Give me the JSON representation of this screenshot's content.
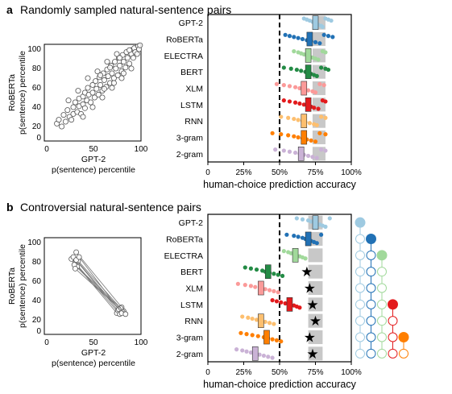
{
  "panels": [
    {
      "letter": "a",
      "title": "Randomly sampled natural-sentence pairs",
      "scatter": {
        "xlabel_lines": [
          "GPT-2",
          "p(sentence) percentile"
        ],
        "ylabel_lines": [
          "RoBERTa",
          "p(sentence) percentile"
        ],
        "ticks": [
          "0",
          "50",
          "100"
        ]
      },
      "accuracy": {
        "xlabel": "human-choice prediction accuracy",
        "tick_labels": [
          "0",
          "25%",
          "50%",
          "75%",
          "100%"
        ],
        "chance_line": 0.5,
        "models": [
          "GPT-2",
          "RoBERTa",
          "ELECTRA",
          "BERT",
          "XLM",
          "LSTM",
          "RNN",
          "3-gram",
          "2-gram"
        ]
      }
    },
    {
      "letter": "b",
      "title": "Controversial natural-sentence pairs",
      "scatter": {
        "xlabel_lines": [
          "GPT-2",
          "p(sentence) percentile"
        ],
        "ylabel_lines": [
          "RoBERTa",
          "p(sentence) percentile"
        ],
        "ticks": [
          "0",
          "50",
          "100"
        ]
      },
      "accuracy": {
        "xlabel": "human-choice prediction accuracy",
        "tick_labels": [
          "0",
          "25%",
          "50%",
          "75%",
          "100%"
        ],
        "chance_line": 0.5,
        "models": [
          "GPT-2",
          "RoBERTa",
          "ELECTRA",
          "BERT",
          "XLM",
          "LSTM",
          "RNN",
          "3-gram",
          "2-gram"
        ]
      }
    }
  ],
  "colors": {
    "GPT-2": "#9ecae1",
    "RoBERTa": "#2171b5",
    "ELECTRA": "#a1d99b",
    "BERT": "#238b45",
    "XLM": "#fb9a99",
    "LSTM": "#e31a1c",
    "RNN": "#fdbf6f",
    "3-gram": "#ff7f00",
    "2-gram": "#cab2d6",
    "noise_ceiling": "#c8c8c8",
    "chance": "#000000"
  },
  "chart_data": [
    {
      "panel": "a",
      "type": "scatter",
      "xlabel": "GPT-2 p(sentence) percentile",
      "ylabel": "RoBERTa p(sentence) percentile",
      "xlim": [
        0,
        100
      ],
      "ylim": [
        0,
        100
      ],
      "points": [
        [
          13,
          18
        ],
        [
          18,
          15
        ],
        [
          20,
          27
        ],
        [
          22,
          20
        ],
        [
          24,
          32
        ],
        [
          26,
          25
        ],
        [
          28,
          22
        ],
        [
          30,
          35
        ],
        [
          30,
          28
        ],
        [
          32,
          40
        ],
        [
          34,
          30
        ],
        [
          36,
          44
        ],
        [
          36,
          36
        ],
        [
          38,
          28
        ],
        [
          40,
          46
        ],
        [
          40,
          38
        ],
        [
          42,
          50
        ],
        [
          42,
          34
        ],
        [
          44,
          42
        ],
        [
          45,
          55
        ],
        [
          46,
          48
        ],
        [
          48,
          40
        ],
        [
          50,
          58
        ],
        [
          50,
          50
        ],
        [
          52,
          45
        ],
        [
          53,
          62
        ],
        [
          54,
          54
        ],
        [
          56,
          48
        ],
        [
          57,
          66
        ],
        [
          58,
          58
        ],
        [
          60,
          52
        ],
        [
          61,
          70
        ],
        [
          62,
          63
        ],
        [
          64,
          56
        ],
        [
          65,
          74
        ],
        [
          66,
          67
        ],
        [
          68,
          60
        ],
        [
          69,
          78
        ],
        [
          70,
          70
        ],
        [
          72,
          65
        ],
        [
          73,
          82
        ],
        [
          74,
          75
        ],
        [
          76,
          68
        ],
        [
          77,
          86
        ],
        [
          78,
          78
        ],
        [
          80,
          72
        ],
        [
          81,
          89
        ],
        [
          82,
          82
        ],
        [
          84,
          76
        ],
        [
          85,
          92
        ],
        [
          86,
          86
        ],
        [
          88,
          80
        ],
        [
          89,
          94
        ],
        [
          90,
          90
        ],
        [
          92,
          86
        ],
        [
          93,
          96
        ],
        [
          94,
          92
        ],
        [
          96,
          90
        ],
        [
          97,
          98
        ],
        [
          98,
          95
        ],
        [
          99,
          99
        ],
        [
          25,
          42
        ],
        [
          35,
          52
        ],
        [
          45,
          65
        ],
        [
          55,
          72
        ],
        [
          65,
          82
        ],
        [
          75,
          90
        ],
        [
          40,
          25
        ],
        [
          50,
          35
        ],
        [
          60,
          45
        ],
        [
          70,
          55
        ],
        [
          80,
          65
        ],
        [
          90,
          75
        ],
        [
          15,
          22
        ],
        [
          58,
          68
        ],
        [
          68,
          76
        ],
        [
          78,
          86
        ],
        [
          88,
          94
        ],
        [
          62,
          54
        ],
        [
          72,
          60
        ],
        [
          82,
          70
        ]
      ]
    },
    {
      "panel": "a",
      "type": "scatter",
      "xlabel": "human-choice prediction accuracy",
      "xlim": [
        0,
        1
      ],
      "chance": 0.5,
      "noise_ceiling": [
        0.73,
        0.82
      ],
      "series": [
        {
          "name": "GPT-2",
          "mean": 0.75,
          "points": [
            0.67,
            0.69,
            0.71,
            0.73,
            0.74,
            0.76,
            0.77,
            0.79,
            0.8,
            0.82,
            0.84,
            0.86
          ]
        },
        {
          "name": "RoBERTa",
          "mean": 0.71,
          "points": [
            0.54,
            0.57,
            0.6,
            0.63,
            0.66,
            0.69,
            0.72,
            0.75,
            0.78,
            0.81,
            0.84,
            0.87
          ]
        },
        {
          "name": "ELECTRA",
          "mean": 0.7,
          "points": [
            0.6,
            0.63,
            0.65,
            0.67,
            0.69,
            0.71,
            0.73,
            0.75,
            0.77,
            0.8,
            0.82
          ]
        },
        {
          "name": "BERT",
          "mean": 0.7,
          "points": [
            0.53,
            0.58,
            0.62,
            0.65,
            0.68,
            0.7,
            0.72,
            0.74,
            0.76,
            0.79,
            0.82,
            0.84
          ]
        },
        {
          "name": "XLM",
          "mean": 0.67,
          "points": [
            0.48,
            0.53,
            0.57,
            0.61,
            0.64,
            0.67,
            0.7,
            0.73,
            0.75,
            0.78,
            0.81
          ]
        },
        {
          "name": "LSTM",
          "mean": 0.7,
          "points": [
            0.53,
            0.57,
            0.61,
            0.64,
            0.67,
            0.7,
            0.72,
            0.74,
            0.77,
            0.8,
            0.82
          ]
        },
        {
          "name": "RNN",
          "mean": 0.67,
          "points": [
            0.51,
            0.56,
            0.6,
            0.63,
            0.66,
            0.68,
            0.71,
            0.74,
            0.76,
            0.79,
            0.82
          ]
        },
        {
          "name": "3-gram",
          "mean": 0.67,
          "points": [
            0.45,
            0.51,
            0.56,
            0.6,
            0.63,
            0.66,
            0.69,
            0.72,
            0.75,
            0.78,
            0.82
          ]
        },
        {
          "name": "2-gram",
          "mean": 0.65,
          "points": [
            0.47,
            0.53,
            0.57,
            0.61,
            0.64,
            0.67,
            0.7,
            0.73,
            0.76,
            0.79,
            0.82
          ]
        }
      ]
    },
    {
      "panel": "b",
      "type": "line",
      "xlabel": "GPT-2 p(sentence) percentile",
      "ylabel": "RoBERTa p(sentence) percentile",
      "xlim": [
        0,
        100
      ],
      "ylim": [
        0,
        100
      ],
      "pairs": [
        [
          [
            28,
            78
          ],
          [
            75,
            22
          ]
        ],
        [
          [
            33,
            85
          ],
          [
            80,
            28
          ]
        ],
        [
          [
            32,
            74
          ],
          [
            78,
            21
          ]
        ],
        [
          [
            34,
            70
          ],
          [
            82,
            24
          ]
        ],
        [
          [
            30,
            80
          ],
          [
            76,
            25
          ]
        ],
        [
          [
            35,
            76
          ],
          [
            79,
            27
          ]
        ],
        [
          [
            31,
            72
          ],
          [
            81,
            23
          ]
        ],
        [
          [
            33,
            77
          ],
          [
            77,
            26
          ]
        ],
        [
          [
            36,
            80
          ],
          [
            80,
            22
          ]
        ],
        [
          [
            32,
            68
          ],
          [
            84,
            21
          ]
        ]
      ]
    },
    {
      "panel": "b",
      "type": "scatter",
      "xlabel": "human-choice prediction accuracy",
      "xlim": [
        0,
        1
      ],
      "chance": 0.5,
      "noise_ceiling": [
        0.7,
        0.8
      ],
      "series": [
        {
          "name": "GPT-2",
          "mean": 0.75,
          "points": [
            0.62,
            0.66,
            0.7,
            0.72,
            0.74,
            0.76,
            0.78,
            0.8,
            0.82,
            0.85
          ]
        },
        {
          "name": "RoBERTa",
          "mean": 0.7,
          "points": [
            0.55,
            0.6,
            0.63,
            0.66,
            0.68,
            0.7,
            0.72,
            0.74,
            0.76,
            0.79
          ]
        },
        {
          "name": "ELECTRA",
          "mean": 0.61,
          "points": [
            0.53,
            0.56,
            0.58,
            0.6,
            0.62,
            0.64,
            0.66,
            0.68
          ]
        },
        {
          "name": "BERT",
          "mean": 0.42,
          "points": [
            0.26,
            0.3,
            0.34,
            0.38,
            0.4,
            0.43,
            0.46,
            0.49,
            0.52
          ]
        },
        {
          "name": "XLM",
          "mean": 0.37,
          "points": [
            0.21,
            0.26,
            0.3,
            0.33,
            0.37,
            0.4,
            0.43,
            0.46,
            0.49
          ]
        },
        {
          "name": "LSTM",
          "mean": 0.57,
          "points": [
            0.45,
            0.48,
            0.51,
            0.54,
            0.57,
            0.6,
            0.62,
            0.64
          ]
        },
        {
          "name": "RNN",
          "mean": 0.37,
          "points": [
            0.24,
            0.28,
            0.31,
            0.34,
            0.37,
            0.4,
            0.43,
            0.46
          ]
        },
        {
          "name": "3-gram",
          "mean": 0.41,
          "points": [
            0.23,
            0.27,
            0.31,
            0.35,
            0.39,
            0.42,
            0.45,
            0.48,
            0.51
          ]
        },
        {
          "name": "2-gram",
          "mean": 0.33,
          "points": [
            0.2,
            0.24,
            0.27,
            0.3,
            0.33,
            0.36,
            0.39,
            0.42,
            0.45
          ]
        }
      ],
      "stars": [
        null,
        null,
        null,
        0.69,
        0.71,
        0.73,
        0.75,
        0.71,
        0.73
      ]
    }
  ],
  "pair_diagram": {
    "note": "each row/column model pair; filled circle marks the model, open circles mark the pairs",
    "models": [
      "GPT-2",
      "RoBERTa",
      "ELECTRA",
      "BERT",
      "XLM",
      "LSTM",
      "RNN",
      "3-gram",
      "2-gram"
    ],
    "filled_row_per_column": [
      0,
      1,
      2,
      5,
      7
    ],
    "columns_models": [
      "GPT-2",
      "RoBERTa",
      "ELECTRA",
      "LSTM",
      "3-gram"
    ]
  }
}
